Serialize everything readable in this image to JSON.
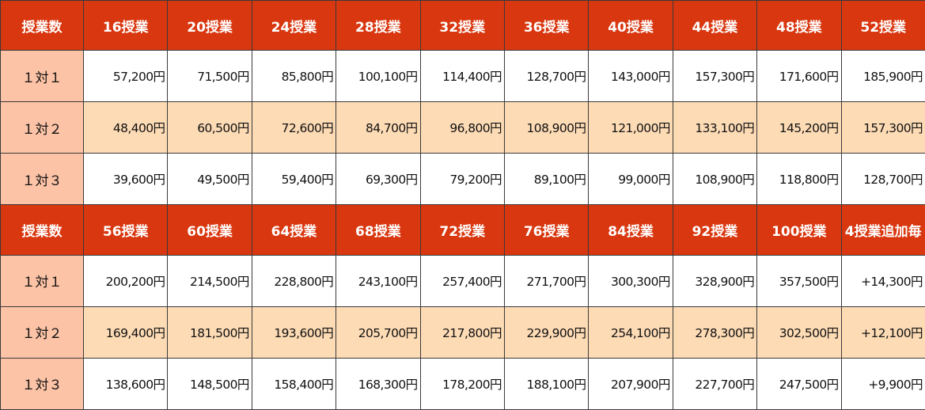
{
  "colors": {
    "header_bg": "#d9370f",
    "header_text": "#ffffff",
    "label_bg": "#fcc3a6",
    "row2_bg": "#fddbb5",
    "row_bg": "#ffffff"
  },
  "table1": {
    "headers": [
      "授業数",
      "16授業",
      "20授業",
      "24授業",
      "28授業",
      "32授業",
      "36授業",
      "40授業",
      "44授業",
      "48授業",
      "52授業"
    ],
    "rows": [
      {
        "label": "１対１",
        "values": [
          "57,200円",
          "71,500円",
          "85,800円",
          "100,100円",
          "114,400円",
          "128,700円",
          "143,000円",
          "157,300円",
          "171,600円",
          "185,900円"
        ]
      },
      {
        "label": "１対２",
        "values": [
          "48,400円",
          "60,500円",
          "72,600円",
          "84,700円",
          "96,800円",
          "108,900円",
          "121,000円",
          "133,100円",
          "145,200円",
          "157,300円"
        ]
      },
      {
        "label": "１対３",
        "values": [
          "39,600円",
          "49,500円",
          "59,400円",
          "69,300円",
          "79,200円",
          "89,100円",
          "99,000円",
          "108,900円",
          "118,800円",
          "128,700円"
        ]
      }
    ]
  },
  "table2": {
    "headers": [
      "授業数",
      "56授業",
      "60授業",
      "64授業",
      "68授業",
      "72授業",
      "76授業",
      "84授業",
      "92授業",
      "100授業",
      "4授業追加毎"
    ],
    "rows": [
      {
        "label": "１対１",
        "values": [
          "200,200円",
          "214,500円",
          "228,800円",
          "243,100円",
          "257,400円",
          "271,700円",
          "300,300円",
          "328,900円",
          "357,500円",
          "+14,300円"
        ]
      },
      {
        "label": "１対２",
        "values": [
          "169,400円",
          "181,500円",
          "193,600円",
          "205,700円",
          "217,800円",
          "229,900円",
          "254,100円",
          "278,300円",
          "302,500円",
          "+12,100円"
        ]
      },
      {
        "label": "１対３",
        "values": [
          "138,600円",
          "148,500円",
          "158,400円",
          "168,300円",
          "178,200円",
          "188,100円",
          "207,900円",
          "227,700円",
          "247,500円",
          "+9,900円"
        ]
      }
    ]
  }
}
